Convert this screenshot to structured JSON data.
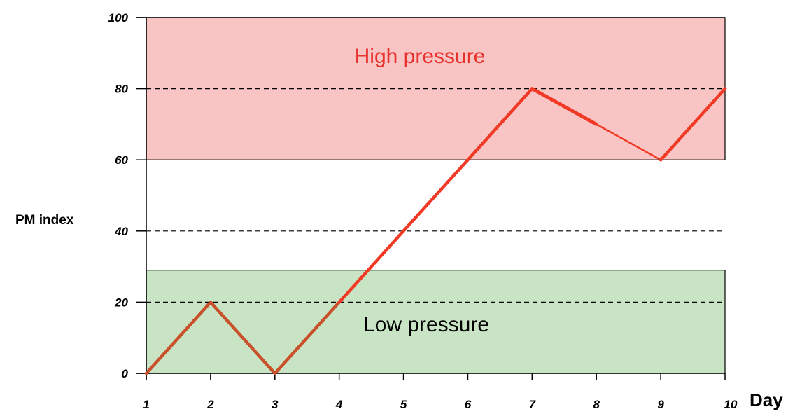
{
  "chart_data": {
    "type": "line",
    "title": "",
    "xlabel": "Day",
    "ylabel": "PM index",
    "x": [
      1,
      2,
      3,
      4,
      5,
      6,
      7,
      8,
      9,
      10
    ],
    "series": [
      {
        "values": [
          0,
          20,
          0,
          20,
          40,
          60,
          80,
          70,
          60,
          80
        ]
      }
    ],
    "xlim": [
      1,
      10
    ],
    "ylim": [
      0,
      100
    ],
    "yticks": [
      0,
      20,
      40,
      60,
      80,
      100
    ],
    "grid_dashed_at": [
      20,
      40,
      80
    ],
    "bands": [
      {
        "label": "High pressure",
        "from": 60,
        "to": 100,
        "fill": "#f9c4c4",
        "label_color": "#e8322e"
      },
      {
        "label": "Low pressure",
        "from": 0,
        "to": 29,
        "fill": "#c8e4c4",
        "label_color": "#000000"
      }
    ],
    "colors": {
      "line_low": "#c8502a",
      "line_high": "#f03a26",
      "grid": "#000000"
    }
  }
}
